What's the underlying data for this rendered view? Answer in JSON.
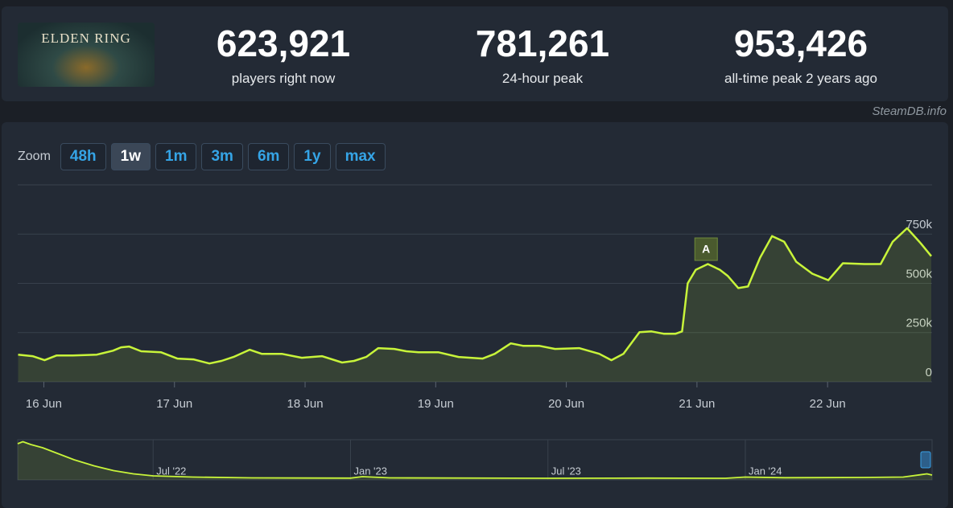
{
  "header": {
    "game": "ELDEN RING",
    "stats": [
      {
        "value": "623,921",
        "label": "players right now"
      },
      {
        "value": "781,261",
        "label": "24-hour peak"
      },
      {
        "value": "953,426",
        "label": "all-time peak 2 years ago"
      }
    ]
  },
  "source": "SteamDB.info",
  "zoom": {
    "label": "Zoom",
    "options": [
      "48h",
      "1w",
      "1m",
      "3m",
      "6m",
      "1y",
      "max"
    ],
    "active": "1w"
  },
  "chart_data": [
    {
      "type": "area",
      "color": "#c8f43a",
      "x": [
        15.803,
        15.914,
        16.006,
        16.098,
        16.222,
        16.406,
        16.529,
        16.591,
        16.652,
        16.745,
        16.898,
        17.022,
        17.145,
        17.268,
        17.36,
        17.452,
        17.575,
        17.668,
        17.822,
        17.975,
        18.129,
        18.283,
        18.375,
        18.468,
        18.56,
        18.683,
        18.775,
        18.868,
        19.022,
        19.175,
        19.36,
        19.452,
        19.575,
        19.668,
        19.791,
        19.914,
        20.098,
        20.252,
        20.345,
        20.437,
        20.56,
        20.652,
        20.745,
        20.837,
        20.886,
        20.929,
        20.991,
        21.083,
        21.175,
        21.237,
        21.317,
        21.391,
        21.483,
        21.575,
        21.668,
        21.76,
        21.883,
        22.006,
        22.117,
        22.283,
        22.406,
        22.498,
        22.609,
        22.714,
        22.794
      ],
      "values": [
        138000,
        130000,
        110000,
        134000,
        134000,
        138000,
        158000,
        175000,
        179000,
        155000,
        150000,
        118000,
        114000,
        93000,
        106000,
        126000,
        163000,
        142000,
        142000,
        122000,
        130000,
        98000,
        106000,
        126000,
        171000,
        167000,
        155000,
        150000,
        150000,
        126000,
        118000,
        142000,
        195000,
        183000,
        183000,
        167000,
        171000,
        142000,
        110000,
        142000,
        252000,
        256000,
        244000,
        244000,
        256000,
        500000,
        569000,
        598000,
        569000,
        537000,
        476000,
        484000,
        630000,
        740000,
        711000,
        610000,
        549000,
        516000,
        602000,
        598000,
        598000,
        711000,
        780000,
        703000,
        638000
      ],
      "xlim": [
        15.8,
        22.8
      ],
      "ylim": [
        0,
        1000000
      ],
      "yticks": [
        0,
        {
          "value": 250000,
          "label": "250k"
        },
        {
          "value": 500000,
          "label": "500k"
        },
        {
          "value": 750000,
          "label": "750k"
        }
      ],
      "xticks": [
        {
          "value": 16,
          "label": "16 Jun"
        },
        {
          "value": 17,
          "label": "17 Jun"
        },
        {
          "value": 18,
          "label": "18 Jun"
        },
        {
          "value": 19,
          "label": "19 Jun"
        },
        {
          "value": 20,
          "label": "20 Jun"
        },
        {
          "value": 21,
          "label": "21 Jun"
        },
        {
          "value": 22,
          "label": "22 Jun"
        }
      ],
      "grid": true,
      "annotations": [
        {
          "x": 21.07,
          "text": "A"
        }
      ]
    },
    {
      "type": "area",
      "color": "#c8f43a",
      "x": [
        2022.157,
        2022.17,
        2022.19,
        2022.22,
        2022.26,
        2022.3,
        2022.35,
        2022.4,
        2022.45,
        2022.5,
        2022.6,
        2022.75,
        2023.0,
        2023.03,
        2023.1,
        2023.5,
        2023.75,
        2023.95,
        2024.0,
        2024.1,
        2024.3,
        2024.4,
        2024.46,
        2024.473
      ],
      "values": [
        900000,
        950000,
        880000,
        800000,
        650000,
        500000,
        350000,
        230000,
        150000,
        100000,
        70000,
        50000,
        45000,
        80000,
        50000,
        40000,
        45000,
        40000,
        70000,
        55000,
        60000,
        70000,
        150000,
        120000
      ],
      "xlim": [
        2022.157,
        2024.473
      ],
      "ylim": [
        0,
        1000000
      ],
      "xticks": [
        {
          "value": 2022.5,
          "label": "Jul '22"
        },
        {
          "value": 2023,
          "label": "Jan '23"
        },
        {
          "value": 2023.5,
          "label": "Jul '23"
        },
        {
          "value": 2024,
          "label": "Jan '24"
        }
      ]
    }
  ]
}
